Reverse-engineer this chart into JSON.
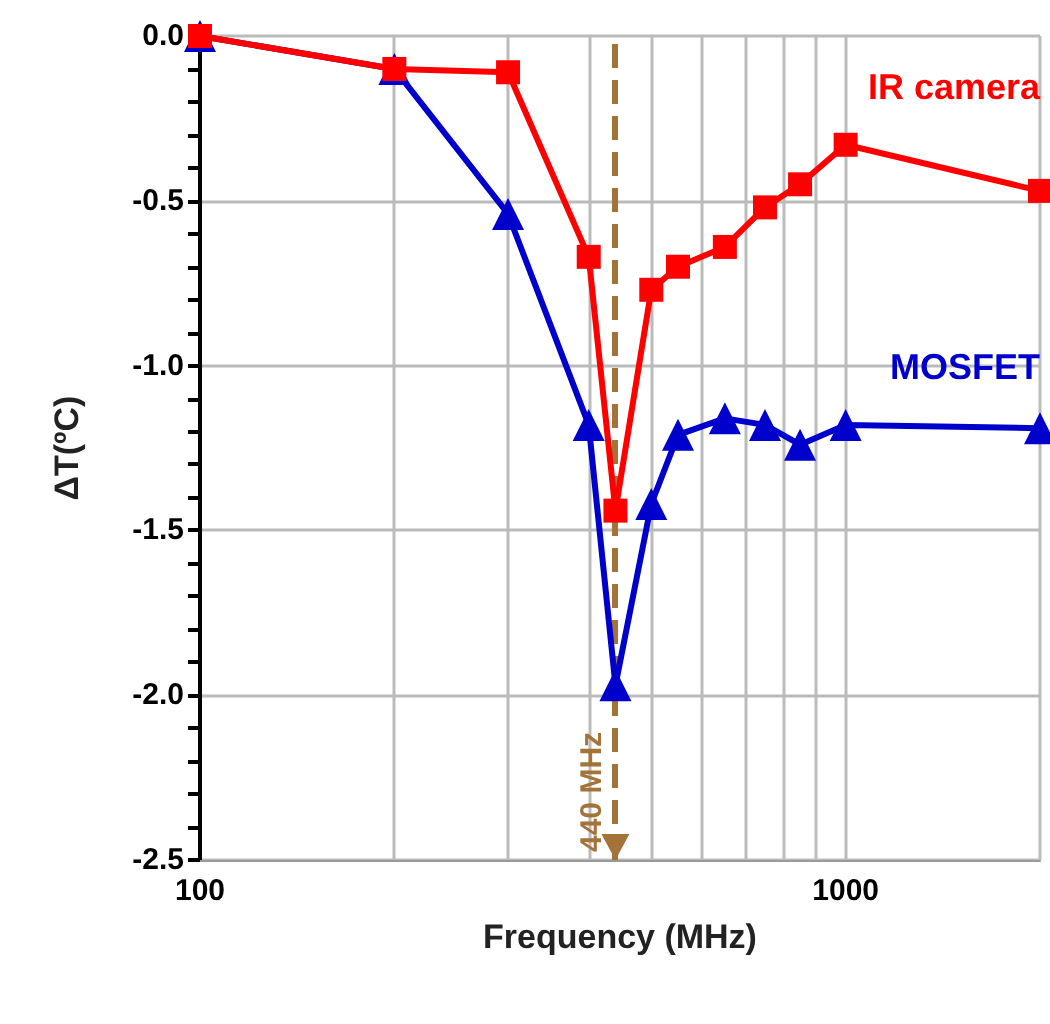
{
  "chart_data": {
    "type": "line",
    "xlabel": "Frequency (MHz)",
    "ylabel": "ΔT(ºC)",
    "log": "x",
    "grid": true,
    "line_style": "solid",
    "legend": false,
    "x": [
      100,
      200,
      300,
      400,
      440,
      500,
      550,
      650,
      750,
      850,
      1000,
      2000
    ],
    "xlim": [
      100,
      2000
    ],
    "xticks": [
      100,
      {
        "value": 200,
        "label": null
      },
      {
        "value": 300,
        "label": null
      },
      {
        "value": 400,
        "label": null
      },
      {
        "value": 500,
        "label": null
      },
      {
        "value": 600,
        "label": null
      },
      {
        "value": 700,
        "label": null
      },
      {
        "value": 800,
        "label": null
      },
      {
        "value": 900,
        "label": null
      },
      1000,
      {
        "value": 2000,
        "label": null
      }
    ],
    "ylim": [
      -2.5,
      0
    ],
    "yticks": [
      -2.5,
      {
        "value": -2,
        "label": "-2.0"
      },
      -1.5,
      {
        "value": -1,
        "label": "-1.0"
      },
      -0.5,
      {
        "value": 0,
        "label": "0.0"
      }
    ],
    "series": [
      {
        "name": "IR camera",
        "color": "#ff0000",
        "marker": "square",
        "values": [
          0,
          -0.1,
          -0.11,
          -0.67,
          -1.44,
          -0.77,
          -0.7,
          -0.64,
          -0.52,
          -0.45,
          -0.33,
          -0.47
        ]
      },
      {
        "name": "MOSFET",
        "color": "#0000cc",
        "marker": "triangle",
        "values": [
          0,
          -0.1,
          -0.54,
          -1.18,
          -1.97,
          -1.42,
          -1.21,
          -1.16,
          -1.18,
          -1.24,
          -1.18,
          -1.19
        ]
      }
    ],
    "ref_lines": [
      {
        "axis": "x",
        "value": 440,
        "label": "440 MHz",
        "color": "#a47339",
        "line_style": "dashed"
      }
    ]
  }
}
